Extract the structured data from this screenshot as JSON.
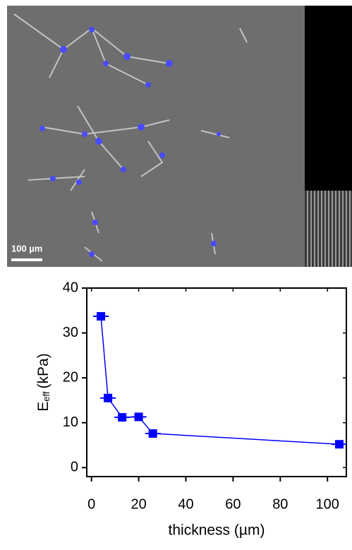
{
  "image": {
    "scale_bar_label": "100 µm"
  },
  "chart_data": {
    "type": "line",
    "x_label": "thickness (µm)",
    "y_label": {
      "main": "E",
      "subscript": "eff",
      "unit": "(kPa)"
    },
    "x": [
      4,
      7,
      13,
      20,
      26,
      105
    ],
    "x_errors": [
      1.5,
      1.5,
      1.5,
      1.5,
      1.5,
      1.5
    ],
    "series": [
      {
        "color": "#0000ff",
        "values": [
          33.7,
          15.5,
          11.2,
          11.3,
          7.6,
          5.2
        ]
      }
    ],
    "xlim": [
      -2,
      108
    ],
    "xticks": [
      0,
      20,
      40,
      60,
      80,
      100
    ],
    "ylim": [
      -2,
      40
    ],
    "yticks": [
      0,
      10,
      20,
      30,
      40
    ]
  }
}
